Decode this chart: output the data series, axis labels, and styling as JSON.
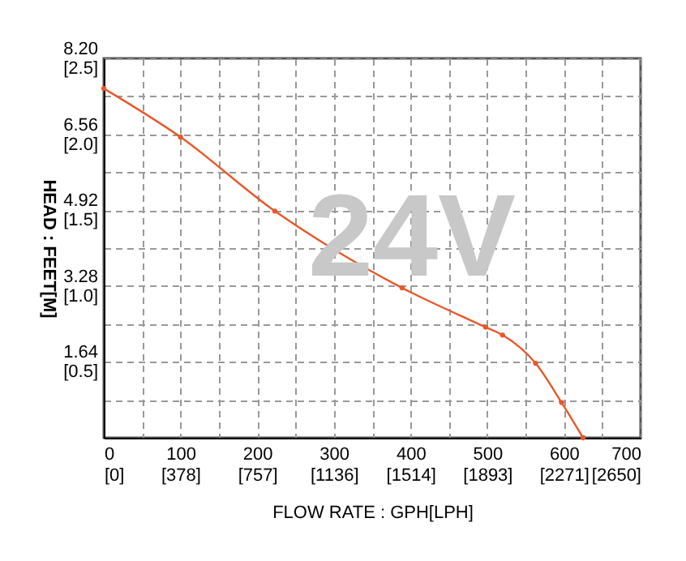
{
  "chart_data": {
    "type": "line",
    "xlabel": "FLOW RATE : GPH[LPH]",
    "ylabel": "HEAD : FEET[M]",
    "annotations": [
      "24V"
    ],
    "x": [
      0,
      100,
      223,
      301,
      389,
      498,
      520,
      563,
      597,
      625
    ],
    "series": [
      {
        "color": "#e8582a",
        "values": [
          7.55,
          6.5,
          4.9,
          4.06,
          3.24,
          2.39,
          2.22,
          1.61,
          0.76,
          0
        ]
      }
    ],
    "xlim": [
      0,
      700
    ],
    "ylim": [
      0,
      8.2
    ],
    "xticks": [
      0,
      {
        "value": 50,
        "label": null
      },
      100,
      {
        "value": 150,
        "label": null
      },
      200,
      {
        "value": 250,
        "label": null
      },
      300,
      {
        "value": 350,
        "label": null
      },
      400,
      {
        "value": 450,
        "label": null
      },
      500,
      {
        "value": 550,
        "label": null
      },
      600,
      {
        "value": 650,
        "label": null
      },
      700
    ],
    "yticks": [
      {
        "value": 0.82,
        "label": null
      },
      1.64,
      {
        "value": 2.46,
        "label": null
      },
      3.28,
      {
        "value": 4.1,
        "label": null
      },
      4.92,
      {
        "value": 5.74,
        "label": null
      },
      6.56,
      {
        "value": 7.38,
        "label": null
      },
      {
        "value": 8.2,
        "label": "8.20"
      }
    ],
    "x2lim": [
      0,
      2650
    ],
    "x2ticks": [
      {
        "value": 0,
        "label": "[0]"
      },
      {
        "value": 378,
        "label": "[378]"
      },
      {
        "value": 757,
        "label": "[757]"
      },
      {
        "value": 1136,
        "label": "[1136]"
      },
      {
        "value": 1514,
        "label": "[1514]"
      },
      {
        "value": 1893,
        "label": "[1893]"
      },
      {
        "value": 2271,
        "label": "[2271]"
      },
      {
        "value": 2650,
        "label": "[2650]"
      }
    ],
    "y2lim": [
      0,
      2.5
    ],
    "y2ticks": [
      {
        "value": 0.5,
        "label": "[0.5]"
      },
      {
        "value": 1.0,
        "label": "[1.0]"
      },
      {
        "value": 1.5,
        "label": "[1.5]"
      },
      {
        "value": 2.0,
        "label": "[2.0]"
      },
      {
        "value": 2.5,
        "label": "[2.5]"
      }
    ],
    "grid": true,
    "marker": "circle",
    "line_style": "solid"
  }
}
